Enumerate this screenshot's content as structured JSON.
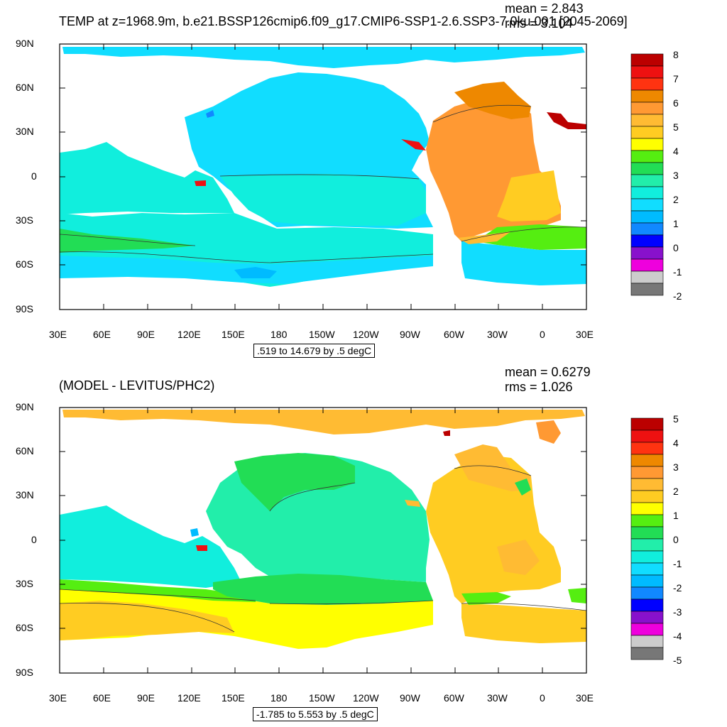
{
  "panel_top": {
    "title": "TEMP at z=1968.9m, b.e21.BSSP126cmip6.f09_g17.CMIP6-SSP1-2.6.SSP3-7.0ku.001 [2045-2069]",
    "mean_label": "mean = 2.843",
    "rms_label": "rms = 3.104",
    "contour_info": ".519 to 14.679 by .5 degC",
    "colorbar_labels": [
      "8",
      "7",
      "6",
      "5",
      "4",
      "3",
      "2",
      "1",
      "0",
      "-1",
      "-2"
    ],
    "colorbar_colors": [
      "#bb0000",
      "#ee1111",
      "#ff3311",
      "#ee8800",
      "#ff9933",
      "#ffbb33",
      "#ffcc22",
      "#ffff00",
      "#55ee11",
      "#22dd55",
      "#22eeaa",
      "#11eedd",
      "#11ddff",
      "#00bbff",
      "#1188ff",
      "#0000ff",
      "#8811cc",
      "#ee00dd",
      "#cccccc",
      "#777777"
    ]
  },
  "panel_bottom": {
    "title": "(MODEL - LEVITUS/PHC2)",
    "mean_label": "mean = 0.6279",
    "rms_label": "rms = 1.026",
    "contour_info": "-1.785 to 5.553 by .5 degC",
    "colorbar_labels": [
      "5",
      "4",
      "3",
      "2",
      "1",
      "0",
      "-1",
      "-2",
      "-3",
      "-4",
      "-5"
    ],
    "colorbar_colors": [
      "#bb0000",
      "#ee1111",
      "#ff3311",
      "#ee8800",
      "#ff9933",
      "#ffbb33",
      "#ffcc22",
      "#ffff00",
      "#55ee11",
      "#22dd55",
      "#22eeaa",
      "#11eedd",
      "#11ddff",
      "#00bbff",
      "#1188ff",
      "#0000ff",
      "#8811cc",
      "#ee00dd",
      "#cccccc",
      "#777777"
    ]
  },
  "axes": {
    "lat_labels": [
      "90N",
      "60N",
      "30N",
      "0",
      "30S",
      "60S",
      "90S"
    ],
    "lon_labels": [
      "30E",
      "60E",
      "90E",
      "120E",
      "150E",
      "180",
      "150W",
      "120W",
      "90W",
      "60W",
      "30W",
      "0",
      "30E"
    ]
  }
}
